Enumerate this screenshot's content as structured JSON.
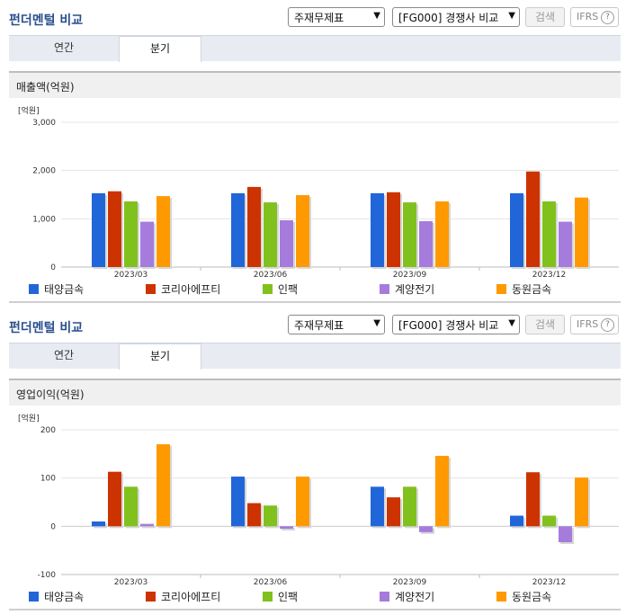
{
  "header": {
    "title": "펀더멘털 비교",
    "select_indicator": "주재무제표",
    "select_compare": "[FG000] 경쟁사 비교",
    "search_label": "검색",
    "ifrs_label": "IFRS",
    "help_symbol": "?"
  },
  "tabs": [
    {
      "label": "연간",
      "active": false
    },
    {
      "label": "분기",
      "active": true
    }
  ],
  "colors": {
    "태양금속": "#2166d9",
    "코리아에프티": "#cc3300",
    "인팩": "#80c11e",
    "계양전기": "#a57cdc",
    "동원금속": "#ff9900"
  },
  "chart_data": [
    {
      "type": "bar",
      "title": "매출액(억원)",
      "unit_label": "[억원]",
      "categories": [
        "2023/03",
        "2023/06",
        "2023/09",
        "2023/12"
      ],
      "ylim": [
        0,
        3000
      ],
      "yticks": [
        0,
        1000,
        2000,
        3000
      ],
      "ytick_labels": [
        "0",
        "1,000",
        "2,000",
        "3,000"
      ],
      "grid": true,
      "legend": "bottom",
      "series": [
        {
          "name": "태양금속",
          "values": [
            1530,
            1530,
            1530,
            1530
          ]
        },
        {
          "name": "코리아에프티",
          "values": [
            1570,
            1660,
            1550,
            1980
          ]
        },
        {
          "name": "인팩",
          "values": [
            1360,
            1340,
            1340,
            1360
          ]
        },
        {
          "name": "계양전기",
          "values": [
            940,
            970,
            950,
            940
          ]
        },
        {
          "name": "동원금속",
          "values": [
            1470,
            1490,
            1360,
            1440
          ]
        }
      ]
    },
    {
      "type": "bar",
      "title": "영업이익(억원)",
      "unit_label": "[억원]",
      "categories": [
        "2023/03",
        "2023/06",
        "2023/09",
        "2023/12"
      ],
      "ylim": [
        -100,
        200
      ],
      "yticks": [
        -100,
        0,
        100,
        200
      ],
      "ytick_labels": [
        "-100",
        "0",
        "100",
        "200"
      ],
      "grid": true,
      "legend": "bottom",
      "series": [
        {
          "name": "태양금속",
          "values": [
            10,
            103,
            82,
            22
          ]
        },
        {
          "name": "코리아에프티",
          "values": [
            113,
            48,
            60,
            112
          ]
        },
        {
          "name": "인팩",
          "values": [
            82,
            43,
            82,
            22
          ]
        },
        {
          "name": "계양전기",
          "values": [
            5,
            -5,
            -12,
            -33
          ]
        },
        {
          "name": "동원금속",
          "values": [
            170,
            103,
            146,
            101
          ]
        }
      ]
    }
  ]
}
